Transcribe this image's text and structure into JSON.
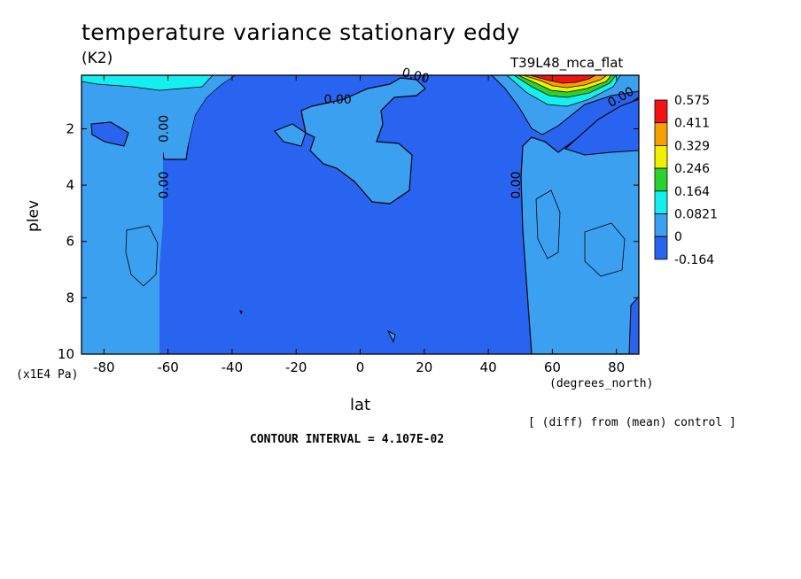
{
  "chart_data": {
    "type": "heatmap",
    "title": "temperature variance stationary eddy",
    "units": "(K2)",
    "run_label": "T39L48_mca_flat",
    "xlabel": "lat",
    "xunits": "(degrees_north)",
    "ylabel": "plev",
    "yunits": "(x1E4 Pa)",
    "footer_note": "[ (diff) from (mean) control ]",
    "contour_interval": "CONTOUR INTERVAL = 4.107E-02",
    "x_ticks": [
      "-80",
      "-60",
      "-40",
      "-20",
      "0",
      "20",
      "40",
      "60",
      "80"
    ],
    "x_tick_values": [
      -80,
      -60,
      -40,
      -20,
      0,
      20,
      40,
      60,
      80
    ],
    "y_ticks": [
      "2",
      "4",
      "6",
      "8",
      "10"
    ],
    "y_tick_values": [
      2,
      4,
      6,
      8,
      10
    ],
    "xlim": [
      -87,
      87
    ],
    "ylim": [
      0.1,
      10
    ],
    "y_inverted": true,
    "colorbar_labels": [
      "0.575",
      "0.411",
      "0.329",
      "0.246",
      "0.164",
      "0.0821",
      "0",
      "-0.164"
    ],
    "colorbar_colors": [
      "#f01414",
      "#f5a000",
      "#f0f000",
      "#2bd22b",
      "#14f0f0",
      "#3ca0f0",
      "#2864f0"
    ],
    "contour_labels": [
      {
        "text": "0.00",
        "lat": -60,
        "plev": 2.0,
        "rotate": -90
      },
      {
        "text": "0.00",
        "lat": -60,
        "plev": 4.0,
        "rotate": -90
      },
      {
        "text": "0.00",
        "lat": -7,
        "plev": 1.1,
        "rotate": 0
      },
      {
        "text": "0.00",
        "lat": 17,
        "plev": 0.25,
        "rotate": 15
      },
      {
        "text": "0.00",
        "lat": 82,
        "plev": 1.0,
        "rotate": -30
      },
      {
        "text": "0.00",
        "lat": 50,
        "plev": 4.0,
        "rotate": -90
      }
    ],
    "regions": [
      {
        "level": "-0.164",
        "description": "most of domain"
      },
      {
        "level": "0",
        "lat_range": [
          -87,
          -60
        ],
        "plev_range": [
          3,
          10
        ]
      },
      {
        "level": "0",
        "lat_range": [
          -10,
          17
        ],
        "plev_range": [
          1.3,
          4.7
        ]
      },
      {
        "level": "0",
        "lat_range": [
          52,
          87
        ],
        "plev_range": [
          0.1,
          10
        ]
      },
      {
        "level": "0.575",
        "lat": 65,
        "plev": 0.2,
        "note": "max near tropopause 60-75N"
      }
    ]
  }
}
